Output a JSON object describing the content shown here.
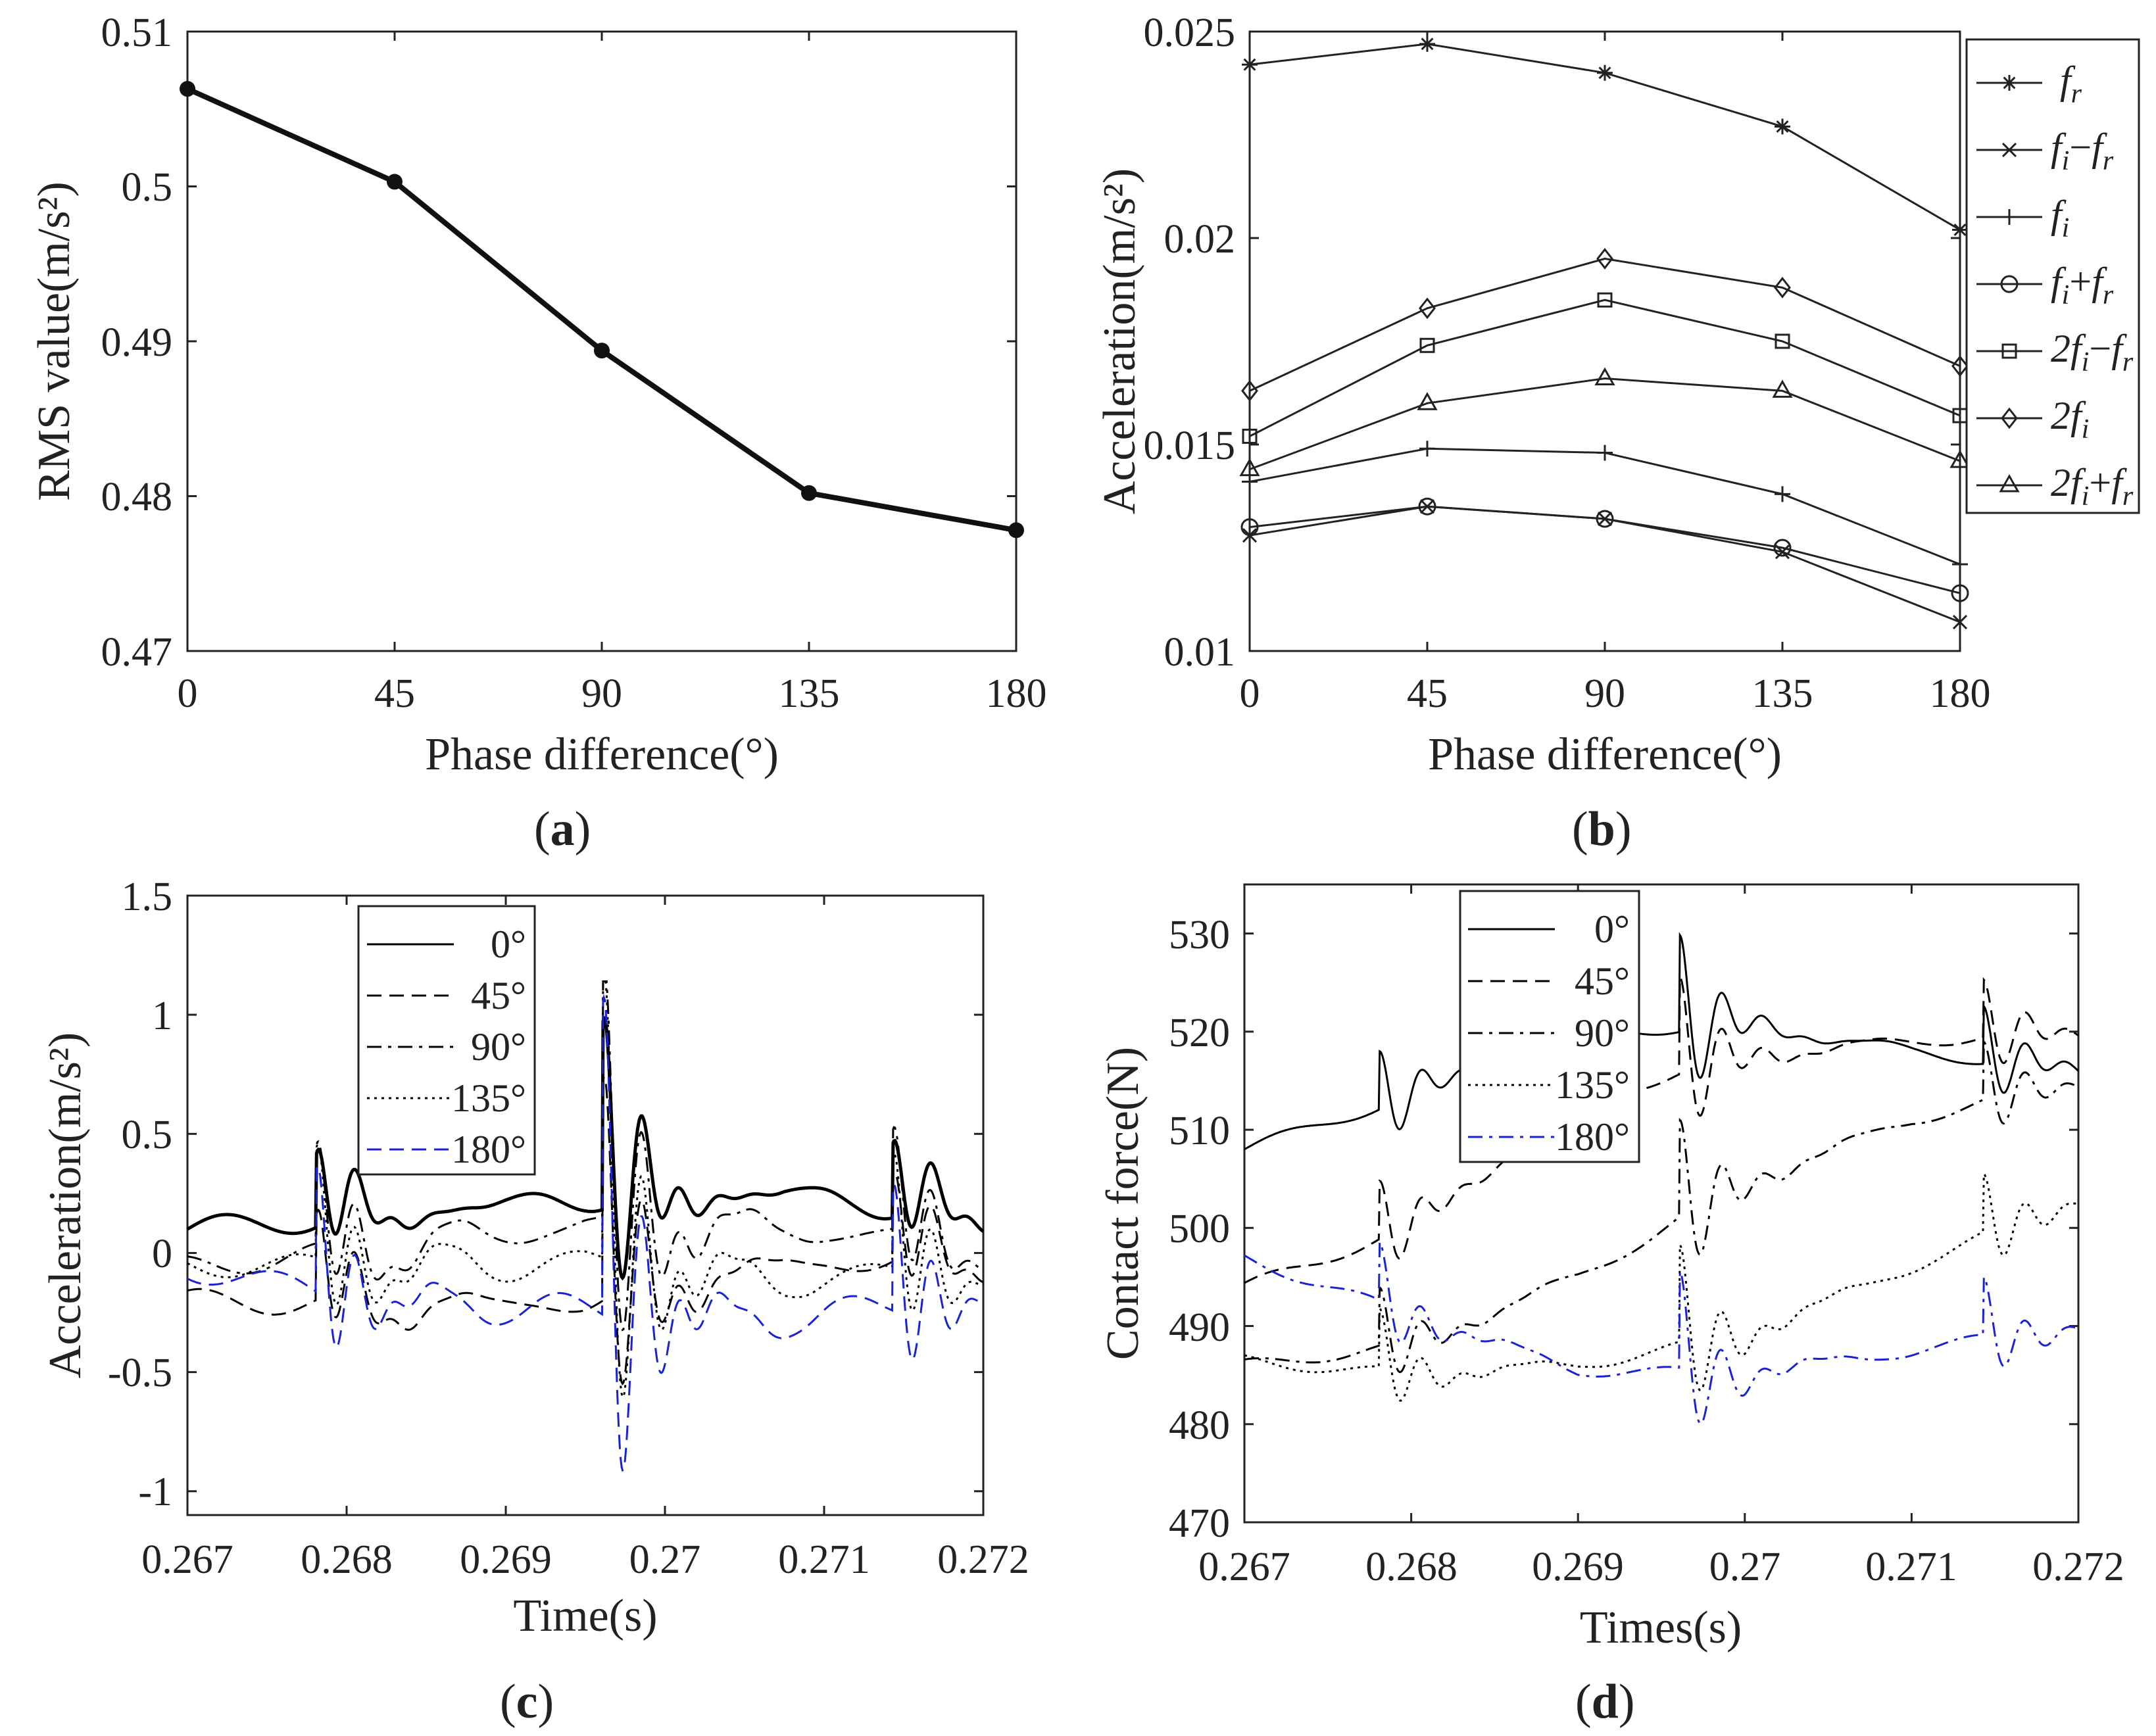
{
  "chart_data": [
    {
      "panel": "a",
      "type": "line",
      "xlabel": "Phase difference(°)",
      "ylabel": "RMS value(m/s²)",
      "xlim": [
        0,
        180
      ],
      "ylim": [
        0.47,
        0.51
      ],
      "xticks": [
        "0",
        "45",
        "90",
        "135",
        "180"
      ],
      "yticks": [
        "0.47",
        "0.48",
        "0.49",
        "0.5",
        "0.51"
      ],
      "x": [
        0,
        45,
        90,
        135,
        180
      ],
      "series": [
        {
          "name": "RMS",
          "values": [
            0.5063,
            0.5003,
            0.4894,
            0.4802,
            0.4778
          ]
        }
      ]
    },
    {
      "panel": "b",
      "type": "line",
      "xlabel": "Phase difference(°)",
      "ylabel": "Acceleration(m/s²)",
      "xlim": [
        0,
        180
      ],
      "ylim": [
        0.01,
        0.025
      ],
      "xticks": [
        "0",
        "45",
        "90",
        "135",
        "180"
      ],
      "yticks": [
        "0.01",
        "0.015",
        "0.02",
        "0.025"
      ],
      "x": [
        0,
        45,
        90,
        135,
        180
      ],
      "series": [
        {
          "name": "f_r",
          "marker": "star",
          "values": [
            0.0242,
            0.0247,
            0.024,
            0.0227,
            0.0202
          ]
        },
        {
          "name": "f_i−f_r",
          "marker": "x",
          "values": [
            0.0128,
            0.0135,
            0.0132,
            0.0124,
            0.0107
          ]
        },
        {
          "name": "f_i",
          "marker": "plus",
          "values": [
            0.0141,
            0.0149,
            0.0148,
            0.0138,
            0.0121
          ]
        },
        {
          "name": "f_i+f_r",
          "marker": "circle",
          "values": [
            0.013,
            0.0135,
            0.0132,
            0.0125,
            0.0114
          ]
        },
        {
          "name": "2f_i−f_r",
          "marker": "square",
          "values": [
            0.0152,
            0.0174,
            0.0185,
            0.0175,
            0.0157
          ]
        },
        {
          "name": "2f_i",
          "marker": "diamond",
          "values": [
            0.0163,
            0.0183,
            0.0195,
            0.0188,
            0.0169
          ]
        },
        {
          "name": "2f_i+f_r",
          "marker": "triangle",
          "values": [
            0.0144,
            0.016,
            0.0166,
            0.0163,
            0.0146
          ]
        }
      ]
    },
    {
      "panel": "c",
      "type": "line",
      "xlabel": "Time(s)",
      "ylabel": "Acceleration(m/s²)",
      "xlim": [
        0.267,
        0.272
      ],
      "ylim": [
        -1.1,
        1.5
      ],
      "xticks": [
        "0.267",
        "0.268",
        "0.269",
        "0.27",
        "0.271",
        "0.272"
      ],
      "yticks": [
        "-1",
        "-0.5",
        "0",
        "0.5",
        "1",
        "1.5"
      ],
      "impacts": [
        0.26781,
        0.26961,
        0.27143
      ],
      "series": [
        {
          "name": "0°",
          "style": "solid",
          "color": "#000000",
          "base": [
            0.1,
            0.16,
            0.23,
            0.25,
            0.15
          ]
        },
        {
          "name": "45°",
          "style": "dash",
          "color": "#000000",
          "base": [
            -0.2,
            -0.22,
            -0.21,
            -0.05,
            -0.02
          ]
        },
        {
          "name": "90°",
          "style": "dashdot",
          "color": "#000000",
          "base": [
            -0.06,
            0.02,
            0.12,
            0.1,
            0.04
          ]
        },
        {
          "name": "135°",
          "style": "dot",
          "color": "#000000",
          "base": [
            -0.05,
            -0.06,
            -0.04,
            -0.12,
            -0.06
          ]
        },
        {
          "name": "180°",
          "style": "dash",
          "color": "#1a22d8",
          "base": [
            -0.07,
            -0.2,
            -0.24,
            -0.28,
            -0.18
          ]
        }
      ]
    },
    {
      "panel": "d",
      "type": "line",
      "xlabel": "Times(s)",
      "ylabel": "Contact force(N)",
      "xlim": [
        0.267,
        0.272
      ],
      "ylim": [
        470,
        535
      ],
      "xticks": [
        "0.267",
        "0.268",
        "0.269",
        "0.27",
        "0.271",
        "0.272"
      ],
      "yticks": [
        "470",
        "480",
        "490",
        "500",
        "510",
        "520",
        "530"
      ],
      "impacts": [
        0.26781,
        0.26961,
        0.27143
      ],
      "series": [
        {
          "name": "0°",
          "style": "solid",
          "color": "#000000",
          "base": [
            508,
            513.5,
            519.8,
            520.8,
            518,
            516
          ]
        },
        {
          "name": "45°",
          "style": "dash",
          "color": "#000000",
          "base": [
            494,
            500,
            513,
            517.5,
            519,
            520
          ]
        },
        {
          "name": "90°",
          "style": "dashdot",
          "color": "#000000",
          "base": [
            486,
            488,
            495,
            504.5,
            511,
            515
          ]
        },
        {
          "name": "135°",
          "style": "dot",
          "color": "#000000",
          "base": [
            486.5,
            485,
            486,
            489,
            496,
            503
          ]
        },
        {
          "name": "180°",
          "style": "dashdot",
          "color": "#1a22d8",
          "base": [
            497,
            491,
            485.5,
            485,
            487.5,
            490
          ]
        }
      ]
    }
  ],
  "panels": {
    "a": "(a)",
    "b": "(b)",
    "c": "(c)",
    "d": "(d)"
  },
  "legend_c": {
    "s0": "0°",
    "s1": "45°",
    "s2": "90°",
    "s3": "135°",
    "s4": "180°"
  },
  "legend_d": {
    "s0": "0°",
    "s1": "45°",
    "s2": "90°",
    "s3": "135°",
    "s4": "180°"
  }
}
